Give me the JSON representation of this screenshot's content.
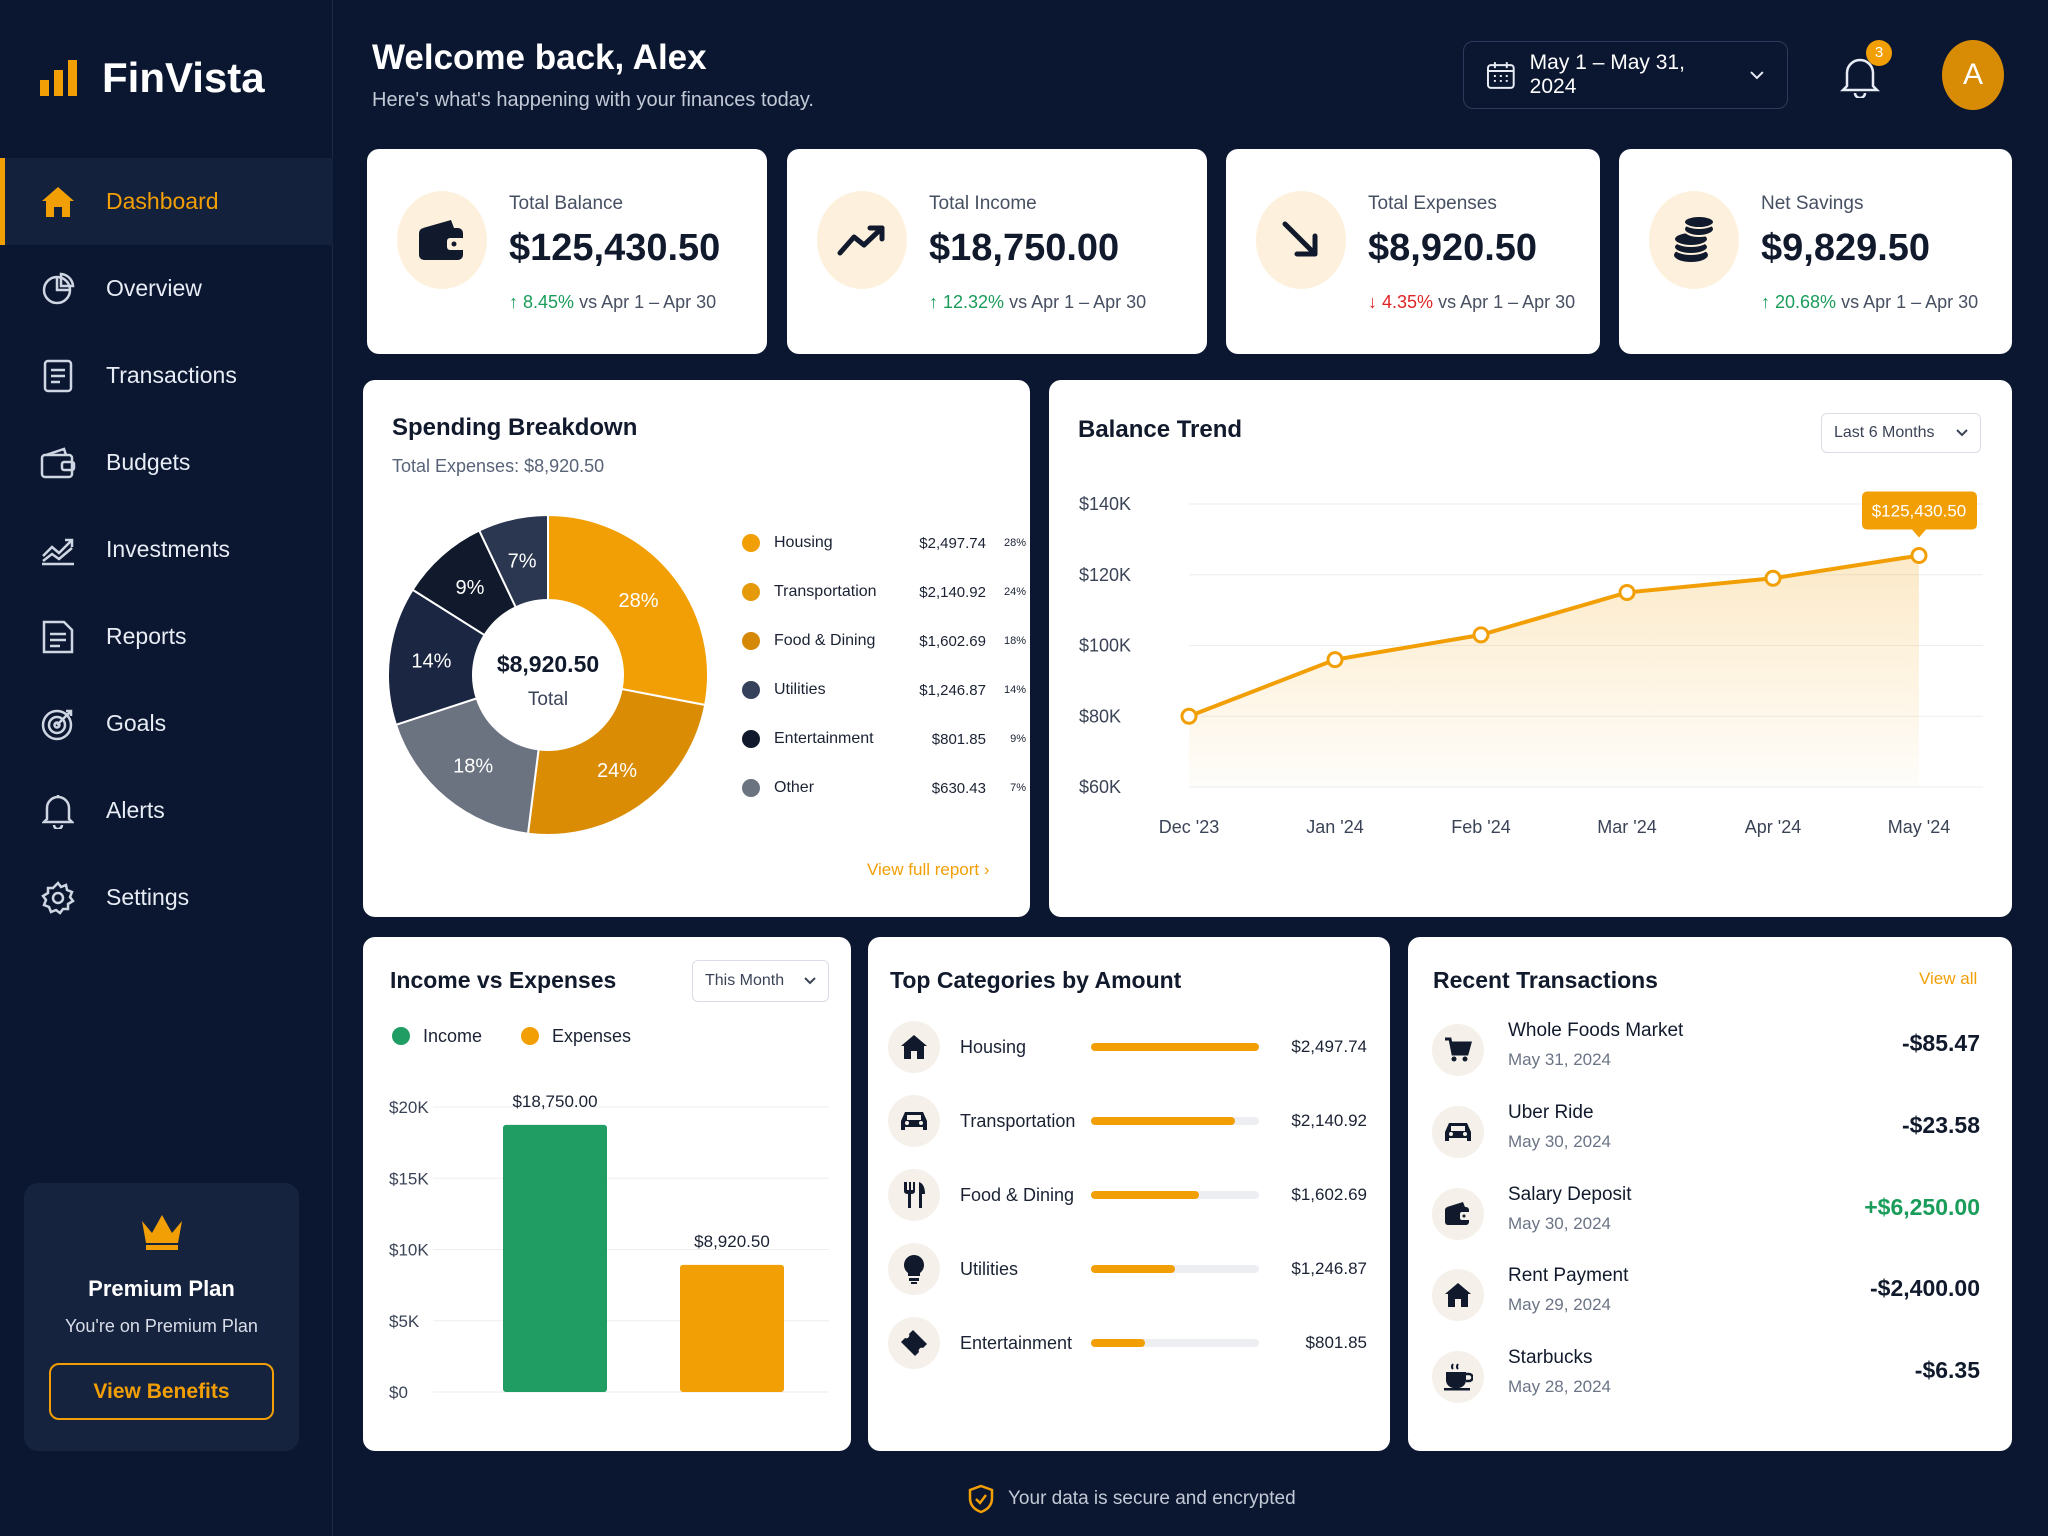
{
  "app": {
    "name": "FinVista"
  },
  "sidebar": {
    "items": [
      {
        "label": "Dashboard",
        "icon": "home-icon",
        "active": true
      },
      {
        "label": "Overview",
        "icon": "pie-icon"
      },
      {
        "label": "Transactions",
        "icon": "document-icon"
      },
      {
        "label": "Budgets",
        "icon": "wallet-icon"
      },
      {
        "label": "Investments",
        "icon": "trend-icon"
      },
      {
        "label": "Reports",
        "icon": "report-icon"
      },
      {
        "label": "Goals",
        "icon": "target-icon"
      },
      {
        "label": "Alerts",
        "icon": "bell-icon"
      },
      {
        "label": "Settings",
        "icon": "gear-icon"
      }
    ],
    "premium": {
      "title": "Premium Plan",
      "subtitle": "You're on Premium Plan",
      "button": "View Benefits"
    }
  },
  "header": {
    "title": "Welcome back, Alex",
    "subtitle": "Here's what's happening with your finances today.",
    "date_range": "May 1 – May 31, 2024",
    "notifications": "3",
    "avatar_initial": "A"
  },
  "stats": [
    {
      "label": "Total Balance",
      "value": "$125,430.50",
      "change": "8.45%",
      "direction": "up",
      "compare": " vs Apr 1 – Apr 30"
    },
    {
      "label": "Total Income",
      "value": "$18,750.00",
      "change": "12.32%",
      "direction": "up",
      "compare": " vs Apr 1 – Apr 30"
    },
    {
      "label": "Total Expenses",
      "value": "$8,920.50",
      "change": "4.35%",
      "direction": "down",
      "compare": " vs Apr 1 – Apr 30"
    },
    {
      "label": "Net Savings",
      "value": "$9,829.50",
      "change": "20.68%",
      "direction": "up",
      "compare": " vs Apr 1 – Apr 30"
    }
  ],
  "spending": {
    "title": "Spending Breakdown",
    "subtitle": "Total Expenses: $8,920.50",
    "center_value": "$8,920.50",
    "center_label": "Total",
    "link": "View full report"
  },
  "balance_trend": {
    "title": "Balance Trend",
    "range": "Last 6 Months",
    "callout": "$125,430.50"
  },
  "income_vs_expenses": {
    "title": "Income vs Expenses",
    "period": "This Month"
  },
  "top_categories": {
    "title": "Top Categories by Amount",
    "items": [
      {
        "name": "Housing",
        "amount": "$2,497.74",
        "value": 2497.74,
        "icon": "home-icon"
      },
      {
        "name": "Transportation",
        "amount": "$2,140.92",
        "value": 2140.92,
        "icon": "car-icon"
      },
      {
        "name": "Food & Dining",
        "amount": "$1,602.69",
        "value": 1602.69,
        "icon": "utensils-icon"
      },
      {
        "name": "Utilities",
        "amount": "$1,246.87",
        "value": 1246.87,
        "icon": "bulb-icon"
      },
      {
        "name": "Entertainment",
        "amount": "$801.85",
        "value": 801.85,
        "icon": "ticket-icon"
      }
    ]
  },
  "recent": {
    "title": "Recent Transactions",
    "link": "View all",
    "items": [
      {
        "name": "Whole Foods Market",
        "date": "May 31, 2024",
        "amount": "-$85.47",
        "icon": "cart-icon"
      },
      {
        "name": "Uber Ride",
        "date": "May 30, 2024",
        "amount": "-$23.58",
        "icon": "car-icon"
      },
      {
        "name": "Salary Deposit",
        "date": "May 30, 2024",
        "amount": "+$6,250.00",
        "icon": "wallet-icon",
        "positive": true
      },
      {
        "name": "Rent Payment",
        "date": "May 29, 2024",
        "amount": "-$2,400.00",
        "icon": "home-icon"
      },
      {
        "name": "Starbucks",
        "date": "May 28, 2024",
        "amount": "-$6.35",
        "icon": "coffee-icon"
      }
    ]
  },
  "footer": {
    "text": "Your data is secure and encrypted"
  },
  "colors": {
    "accent": "#f29f05",
    "positive": "#1a9c5a",
    "negative": "#e02424",
    "navy": "#0b1730"
  },
  "chart_data": [
    {
      "type": "pie",
      "categories": [
        "Housing",
        "Transportation",
        "Food & Dining",
        "Utilities",
        "Entertainment",
        "Other"
      ],
      "values": [
        2497.74,
        2140.92,
        1602.69,
        1246.87,
        801.85,
        630.43
      ],
      "amount_labels": [
        "$2,497.74",
        "$2,140.92",
        "$1,602.69",
        "$1,246.87",
        "$801.85",
        "$630.43"
      ],
      "percent_labels": [
        "28%",
        "24%",
        "18%",
        "14%",
        "9%",
        "7%"
      ],
      "colors": [
        "#f29f05",
        "#e59a0a",
        "#d48806",
        "#35415a",
        "#111a2c",
        "#6b7280"
      ],
      "slice_colors": [
        "#f29f05",
        "#db8c05",
        "#6b7280",
        "#1b2742",
        "#111a2c",
        "#2b3650"
      ]
    },
    {
      "type": "line",
      "x": [
        "Dec '23",
        "Jan '24",
        "Feb '24",
        "Mar '24",
        "Apr '24",
        "May '24"
      ],
      "values": [
        80000,
        96000,
        103000,
        115000,
        119000,
        125430.5
      ],
      "yticks": [
        "$140K",
        "$120K",
        "$100K",
        "$80K",
        "$60K"
      ],
      "ylim": [
        60000,
        140000
      ],
      "grid": true
    },
    {
      "type": "bar",
      "categories": [
        "Income",
        "Expenses"
      ],
      "values": [
        18750.0,
        8920.5
      ],
      "labels": [
        "$18,750.00",
        "$8,920.50"
      ],
      "colors": [
        "#1f9d62",
        "#f29f05"
      ],
      "yticks": [
        "$20K",
        "$15K",
        "$10K",
        "$5K",
        "$0"
      ],
      "ylim": [
        0,
        20000
      ],
      "legend": "top-left"
    }
  ]
}
